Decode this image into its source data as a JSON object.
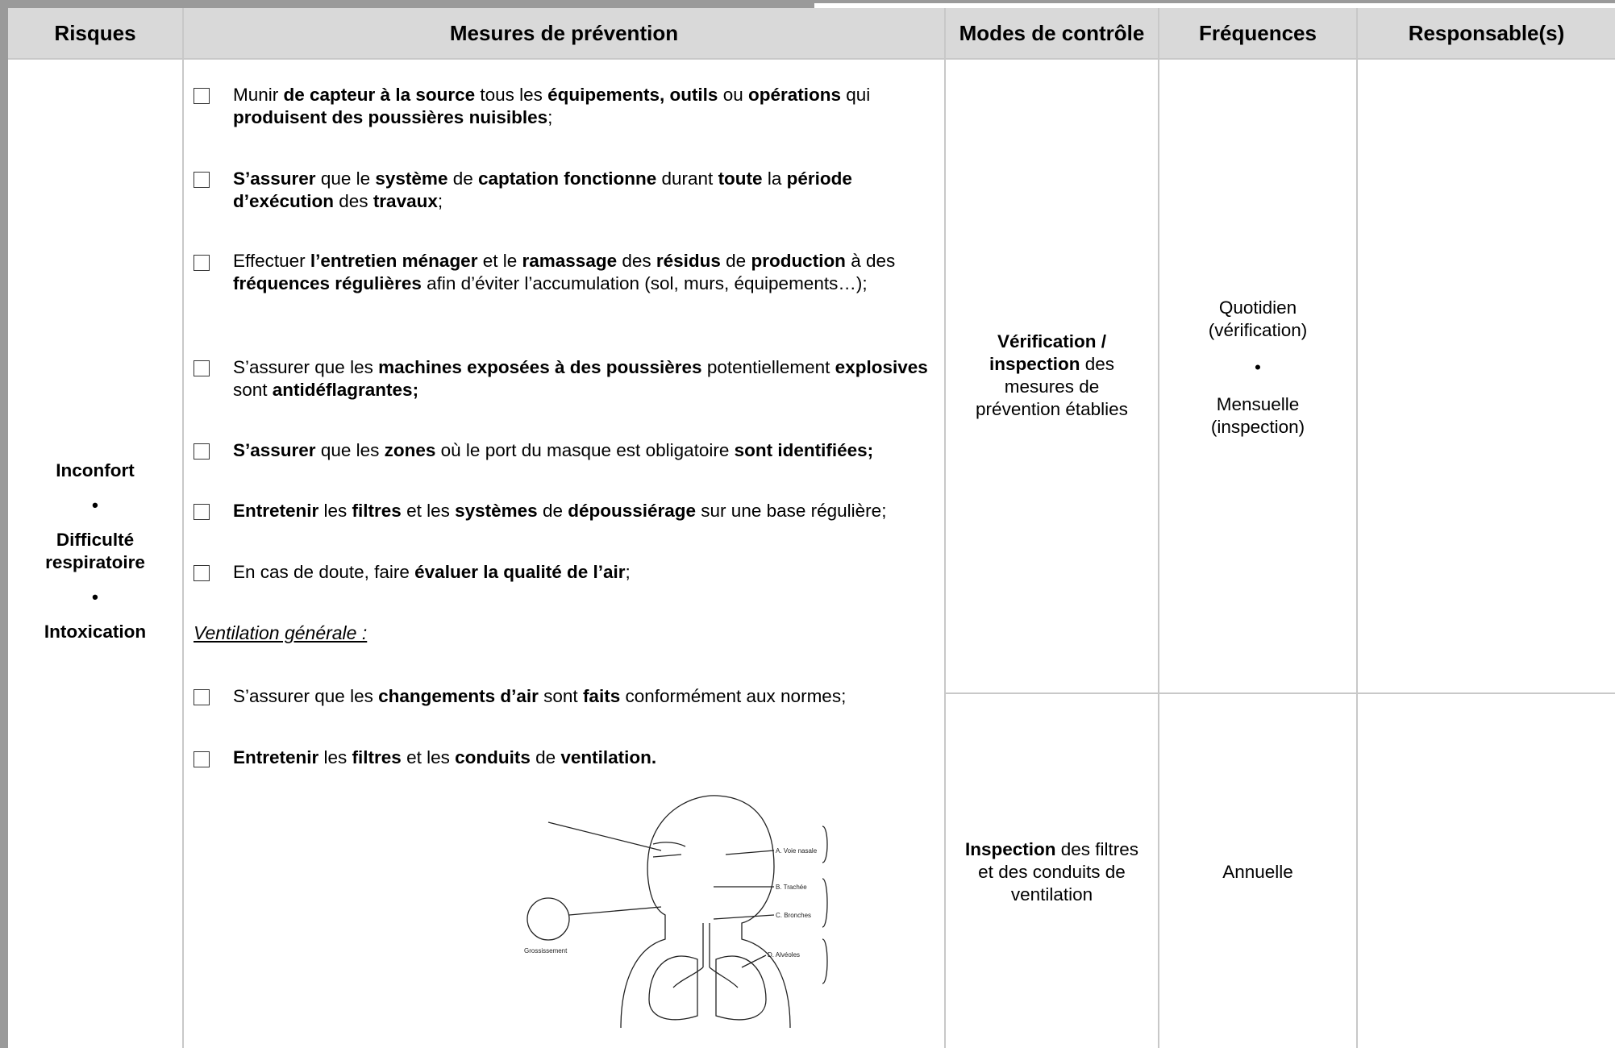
{
  "header": {
    "columns": [
      "Risques",
      "Mesures de prévention",
      "Modes de contrôle",
      "Fréquences",
      "Responsable(s)"
    ]
  },
  "risks": [
    "Inconfort",
    "•",
    "Difficulté respiratoire",
    "•",
    "Intoxication"
  ],
  "measures": [
    {
      "segments": [
        {
          "text": "Munir "
        },
        {
          "text": "de capteur à la source",
          "bold": true
        },
        {
          "text": " tous les "
        },
        {
          "text": "équipements, outils",
          "bold": true
        },
        {
          "text": " ou "
        },
        {
          "text": "opérations",
          "bold": true
        },
        {
          "text": " qui "
        },
        {
          "text": "produisent des poussières nuisibles",
          "bold": true
        },
        {
          "text": ";"
        }
      ]
    },
    {
      "segments": [
        {
          "text": "S’assurer",
          "bold": true
        },
        {
          "text": " que le "
        },
        {
          "text": "système",
          "bold": true
        },
        {
          "text": " de "
        },
        {
          "text": "captation fonctionne",
          "bold": true
        },
        {
          "text": " durant "
        },
        {
          "text": "toute",
          "bold": true
        },
        {
          "text": " la "
        },
        {
          "text": "période d’exécution",
          "bold": true
        },
        {
          "text": " des "
        },
        {
          "text": "travaux",
          "bold": true
        },
        {
          "text": ";"
        }
      ]
    },
    {
      "segments": [
        {
          "text": "Effectuer "
        },
        {
          "text": "l’entretien ménager",
          "bold": true
        },
        {
          "text": " et le "
        },
        {
          "text": "ramassage",
          "bold": true
        },
        {
          "text": " des "
        },
        {
          "text": "résidus",
          "bold": true
        },
        {
          "text": " de "
        },
        {
          "text": "production",
          "bold": true
        },
        {
          "text": " à des "
        },
        {
          "text": "fréquences régulières",
          "bold": true
        },
        {
          "text": " afin d’éviter l’accumulation (sol, murs, équipements…);"
        }
      ]
    },
    {
      "segments": [
        {
          "text": "S’assurer que les "
        },
        {
          "text": "machines exposées à des poussières",
          "bold": true
        },
        {
          "text": " potentiellement "
        },
        {
          "text": "explosives",
          "bold": true
        },
        {
          "text": " sont "
        },
        {
          "text": "antidéflagrantes;",
          "bold": true
        }
      ]
    },
    {
      "segments": [
        {
          "text": "S’assurer",
          "bold": true
        },
        {
          "text": " que les "
        },
        {
          "text": "zones",
          "bold": true
        },
        {
          "text": " où le port du masque est obligatoire "
        },
        {
          "text": "sont identifiées;",
          "bold": true
        }
      ]
    },
    {
      "segments": [
        {
          "text": "Entretenir",
          "bold": true
        },
        {
          "text": " les "
        },
        {
          "text": "filtres",
          "bold": true
        },
        {
          "text": " et les "
        },
        {
          "text": "systèmes",
          "bold": true
        },
        {
          "text": " de "
        },
        {
          "text": "dépoussiérage",
          "bold": true
        },
        {
          "text": " sur une base régulière;"
        }
      ]
    },
    {
      "segments": [
        {
          "text": "En cas de doute, faire "
        },
        {
          "text": "évaluer la qualité de l’air",
          "bold": true
        },
        {
          "text": ";"
        }
      ]
    }
  ],
  "ventilation_heading": "Ventilation générale :",
  "ventilation_measures": [
    {
      "segments": [
        {
          "text": " S’assurer que les "
        },
        {
          "text": "changements d’air",
          "bold": true
        },
        {
          "text": " sont "
        },
        {
          "text": "faits",
          "bold": true
        },
        {
          "text": " conformément aux normes;"
        }
      ]
    },
    {
      "segments": [
        {
          "text": "Entretenir",
          "bold": true
        },
        {
          "text": " les "
        },
        {
          "text": "filtres",
          "bold": true
        },
        {
          "text": " et les "
        },
        {
          "text": "conduits",
          "bold": true
        },
        {
          "text": " de "
        },
        {
          "text": "ventilation.",
          "bold": true
        }
      ]
    }
  ],
  "rows": [
    {
      "control": {
        "segments": [
          {
            "text": "Vérification / inspection",
            "bold": true
          },
          {
            "text": " des mesures de prévention établies"
          }
        ]
      },
      "frequency": [
        "Quotidien",
        "(vérification)",
        "•",
        "Mensuelle",
        "(inspection)"
      ]
    },
    {
      "control": {
        "segments": [
          {
            "text": "Inspection",
            "bold": true
          },
          {
            "text": " des filtres et des conduits de ventilation"
          }
        ]
      },
      "frequency": [
        "Annuelle"
      ]
    }
  ],
  "diagram": {
    "labels": [
      "A. Voie nasale",
      "B. Trachée",
      "C. Bronches",
      "D. Alvéoles",
      "Grossissement"
    ]
  }
}
